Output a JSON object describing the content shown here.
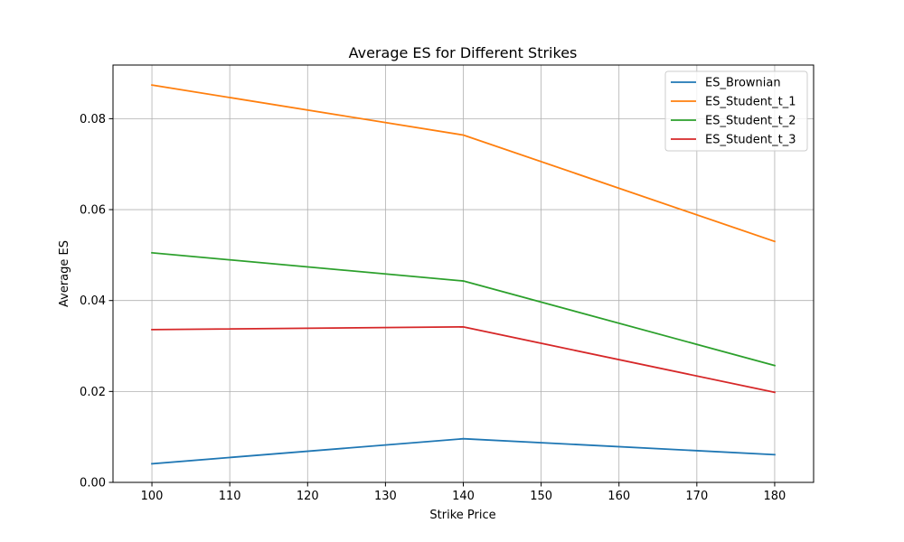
{
  "chart_data": {
    "type": "line",
    "title": "Average ES for Different Strikes",
    "xlabel": "Strike Price",
    "ylabel": "Average ES",
    "x": [
      100,
      140,
      180
    ],
    "xlim": [
      95,
      185
    ],
    "ylim": [
      0,
      0.0918
    ],
    "xticks": [
      100,
      110,
      120,
      130,
      140,
      150,
      160,
      170,
      180
    ],
    "xtick_labels": [
      "100",
      "110",
      "120",
      "130",
      "140",
      "150",
      "160",
      "170",
      "180"
    ],
    "yticks": [
      0,
      0.02,
      0.04,
      0.06,
      0.08
    ],
    "ytick_labels": [
      "0.00",
      "0.02",
      "0.04",
      "0.06",
      "0.08"
    ],
    "grid": true,
    "legend_position": "top-right",
    "series": [
      {
        "name": "ES_Brownian",
        "color": "#1f77b4",
        "values": [
          0.0041,
          0.0096,
          0.0061
        ]
      },
      {
        "name": "ES_Student_t_1",
        "color": "#ff7f0e",
        "values": [
          0.0874,
          0.0764,
          0.053
        ]
      },
      {
        "name": "ES_Student_t_2",
        "color": "#2ca02c",
        "values": [
          0.0505,
          0.0443,
          0.0257
        ]
      },
      {
        "name": "ES_Student_t_3",
        "color": "#d62728",
        "values": [
          0.0336,
          0.0342,
          0.0198
        ]
      }
    ]
  }
}
